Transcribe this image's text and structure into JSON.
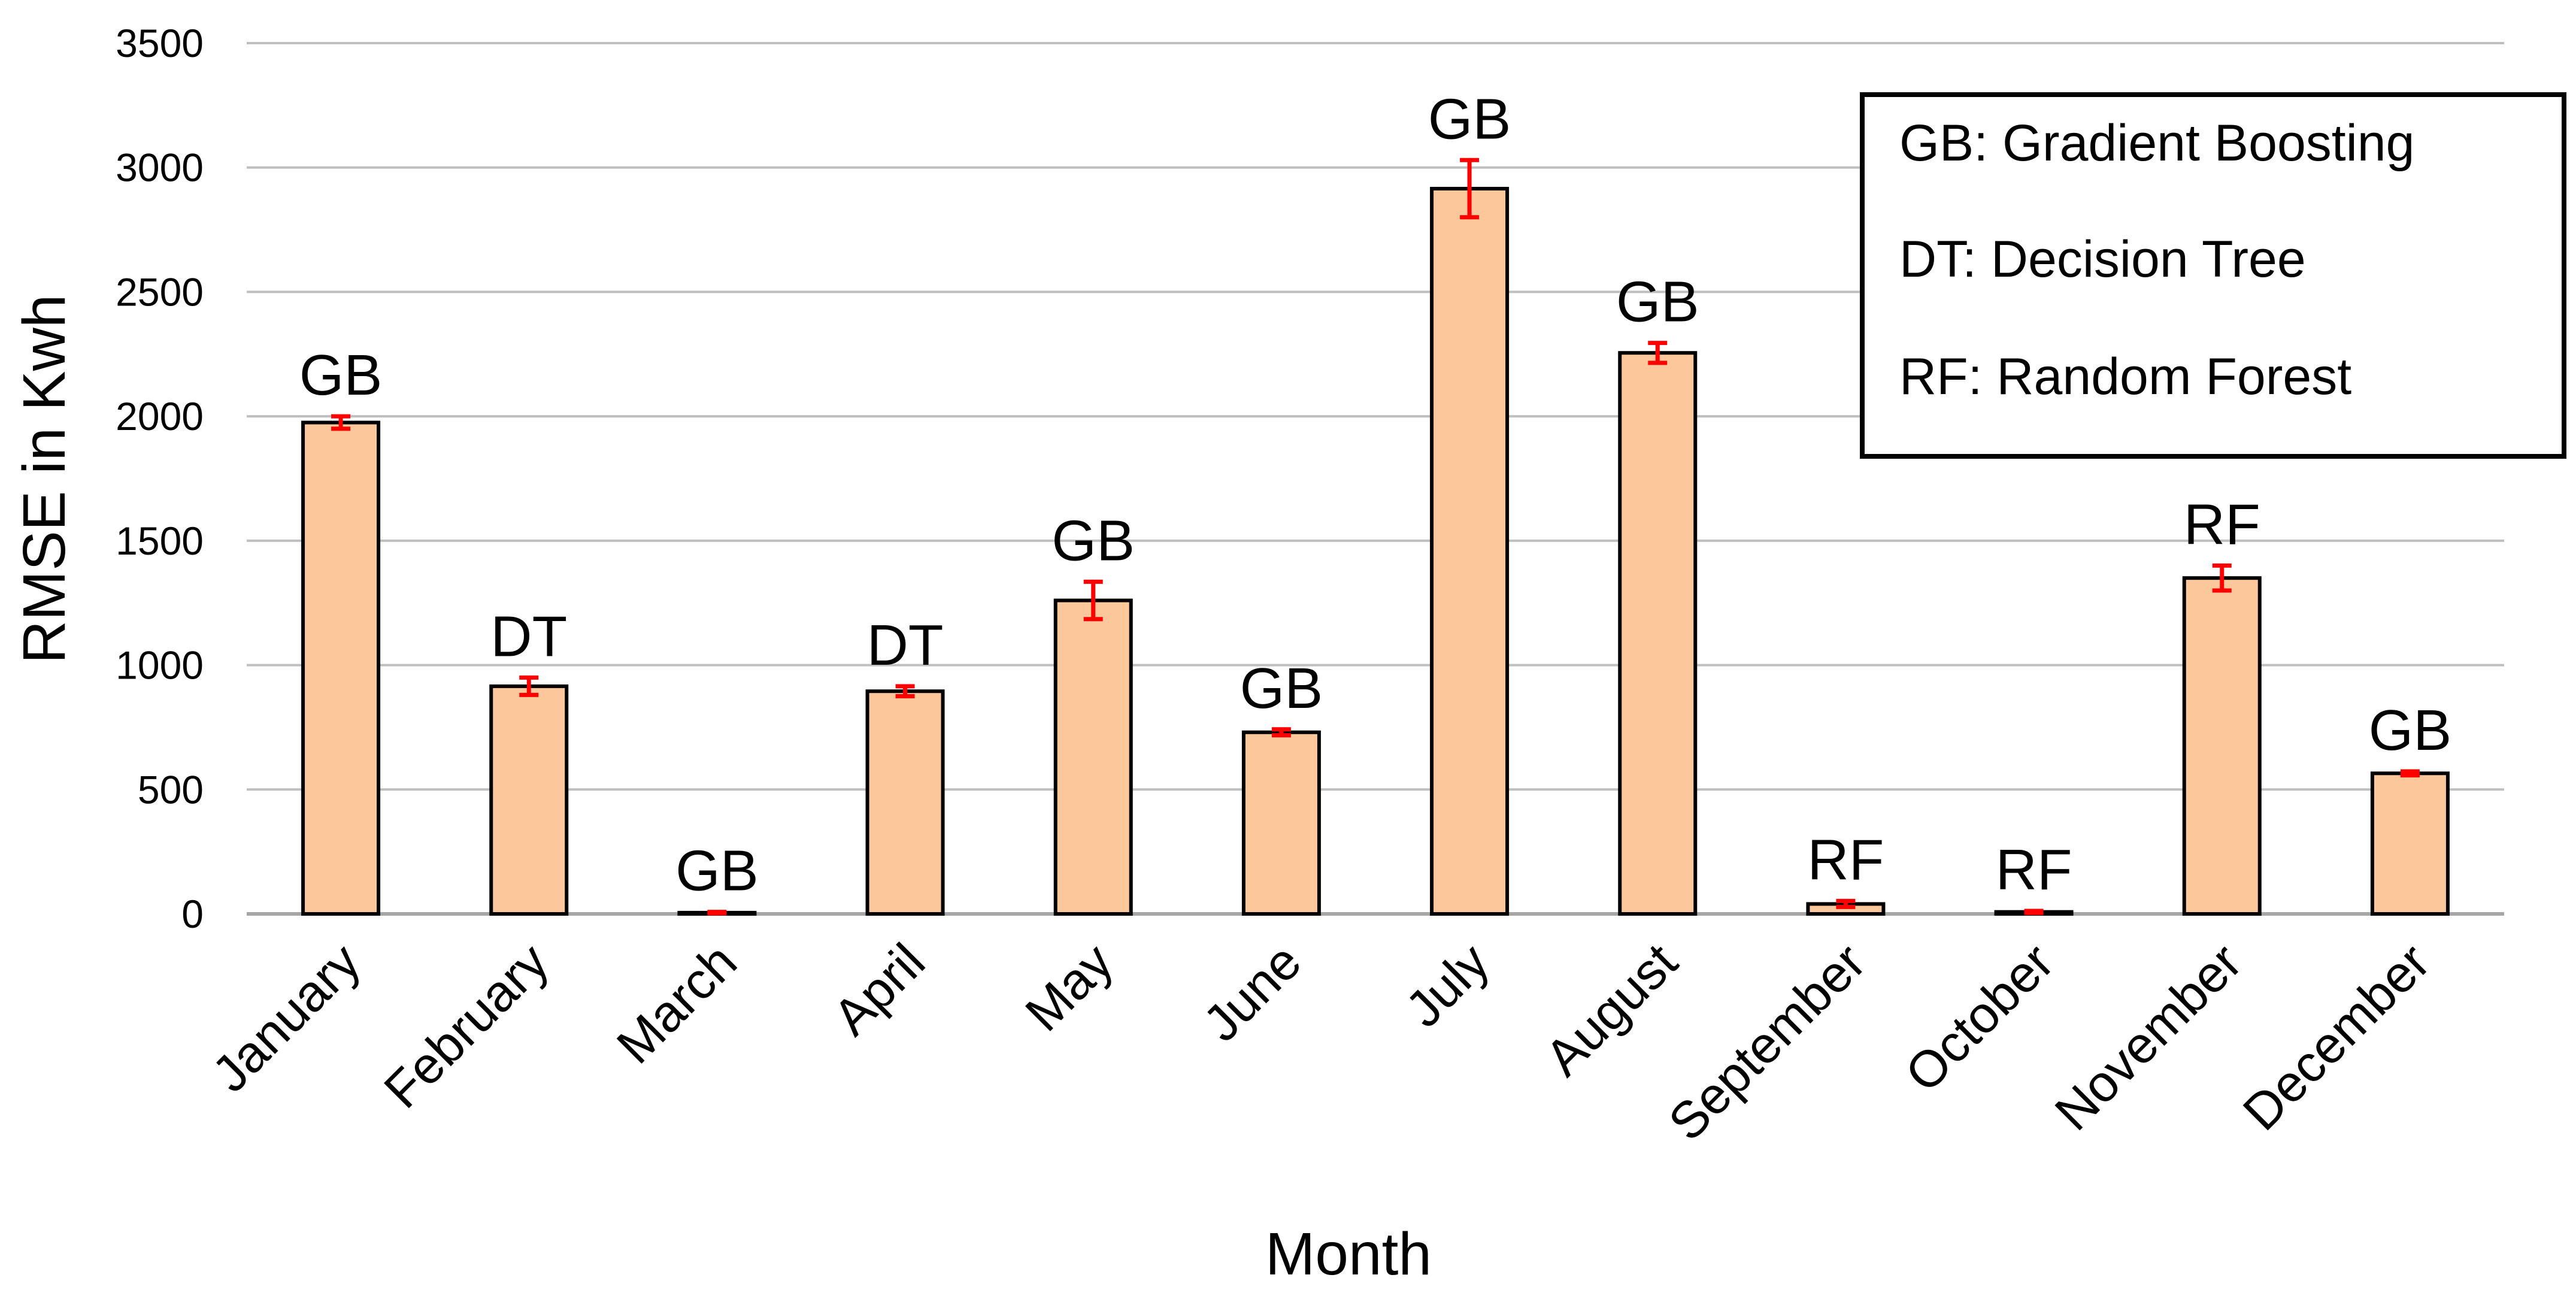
{
  "chart_data": {
    "type": "bar",
    "title": "",
    "xlabel": "Month",
    "ylabel": "RMSE in Kwh",
    "ylim": [
      0,
      3500
    ],
    "yticks": [
      0,
      500,
      1000,
      1500,
      2000,
      2500,
      3000,
      3500
    ],
    "grid": true,
    "categories": [
      "January",
      "February",
      "March",
      "April",
      "May",
      "June",
      "July",
      "August",
      "September",
      "October",
      "November",
      "December"
    ],
    "series": [
      {
        "name": "RMSE",
        "values": [
          1975,
          915,
          5,
          895,
          1260,
          730,
          2915,
          2255,
          40,
          8,
          1350,
          565
        ],
        "errors": [
          25,
          35,
          3,
          20,
          75,
          12,
          115,
          40,
          12,
          4,
          50,
          8
        ],
        "model_labels": [
          "GB",
          "DT",
          "GB",
          "DT",
          "GB",
          "GB",
          "GB",
          "GB",
          "RF",
          "RF",
          "RF",
          "GB"
        ]
      }
    ],
    "legend": {
      "placement": "top-right",
      "entries": [
        "GB: Gradient Boosting",
        "DT: Decision Tree",
        "RF: Random Forest"
      ]
    },
    "colors": {
      "bar_fill": "#FCC89B",
      "bar_stroke": "#000000",
      "error_bar": "#FF0000",
      "grid": "#BFBFBF",
      "axis": "#A6A6A6"
    }
  }
}
